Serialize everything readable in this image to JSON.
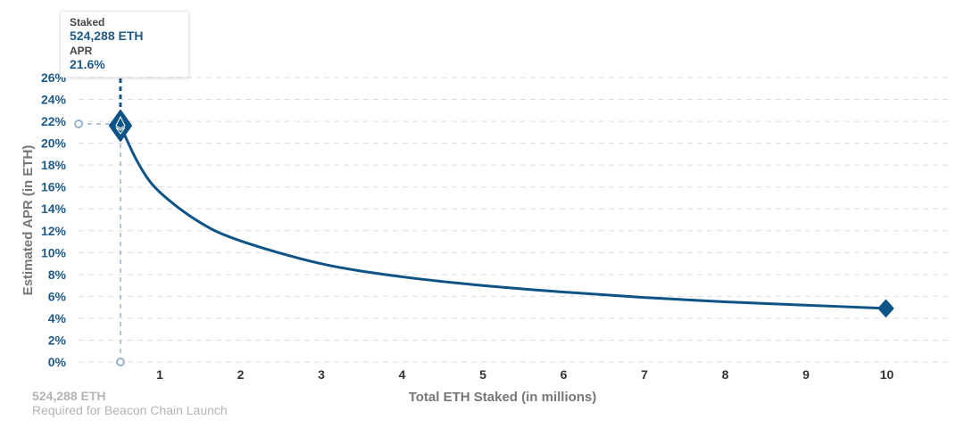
{
  "chart_data": {
    "type": "line",
    "xlabel": "Total ETH Staked  (in millions)",
    "ylabel": "Estimated APR (in ETH)",
    "xlim": [
      0,
      10.5
    ],
    "ylim": [
      0,
      26
    ],
    "x_ticks": [
      "1",
      "2",
      "3",
      "4",
      "5",
      "6",
      "7",
      "8",
      "9",
      "10"
    ],
    "y_ticks": [
      "0%",
      "2%",
      "4%",
      "6%",
      "8%",
      "10%",
      "12%",
      "14%",
      "16%",
      "18%",
      "20%",
      "22%",
      "24%",
      "26%"
    ],
    "grid": "horizontal dashed",
    "series": [
      {
        "x": [
          0.524288,
          0.75,
          1,
          1.5,
          2,
          3,
          4,
          5,
          6,
          7,
          8,
          9,
          10
        ],
        "y": [
          21.6,
          18.1,
          15.6,
          12.8,
          11.1,
          9.0,
          7.8,
          7.0,
          6.4,
          5.9,
          5.5,
          5.2,
          4.9
        ],
        "color": "#0d5385"
      }
    ],
    "highlight": {
      "x": 0.524288,
      "y": 21.6
    }
  },
  "tooltip": {
    "staked_label": "Staked",
    "staked_value": "524,288 ETH",
    "apr_label": "APR",
    "apr_value": "21.6%"
  },
  "note": {
    "amount": "524,288 ETH",
    "caption": "Required for Beacon Chain Launch"
  }
}
